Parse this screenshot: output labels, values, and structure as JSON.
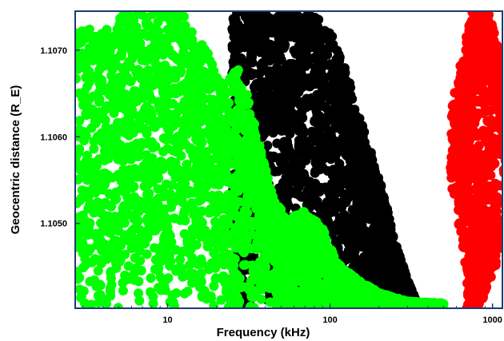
{
  "chart_data": {
    "type": "scatter",
    "title": "",
    "xlabel": "Frequency (kHz)",
    "ylabel": "Geocentric distance (R_E)",
    "x_scale": "log",
    "xlim": [
      2.7,
      1150
    ],
    "ylim": [
      1.10402,
      1.10745
    ],
    "x_ticks": [
      10,
      100,
      1000
    ],
    "x_tick_labels": [
      "10",
      "100",
      "1000"
    ],
    "y_ticks": [
      1.105,
      1.106,
      1.107
    ],
    "y_tick_labels": [
      "1.1050",
      "1.1060",
      "1.1070"
    ],
    "grid": false,
    "legend": "none",
    "series": [
      {
        "color": "#000000",
        "x_range": [
          25,
          340
        ],
        "envelope": [
          [
            25,
            1.10745
          ],
          [
            45,
            1.10745
          ],
          [
            60,
            1.10745
          ],
          [
            75,
            1.10745
          ],
          [
            95,
            1.1073
          ],
          [
            120,
            1.1069
          ],
          [
            150,
            1.1063
          ],
          [
            180,
            1.1058
          ],
          [
            210,
            1.1054
          ],
          [
            250,
            1.1048
          ],
          [
            300,
            1.10435
          ],
          [
            340,
            1.1041
          ]
        ]
      },
      {
        "color": "#00ff00",
        "x_range": [
          2.7,
          500
        ],
        "envelope": [
          [
            2.7,
            1.1073
          ],
          [
            4,
            1.1072
          ],
          [
            5,
            1.1074
          ],
          [
            8,
            1.10745
          ],
          [
            12,
            1.10745
          ],
          [
            16,
            1.1071
          ],
          [
            22,
            1.1067
          ],
          [
            28,
            1.1068
          ],
          [
            33,
            1.1063
          ],
          [
            38,
            1.1058
          ],
          [
            45,
            1.1053
          ],
          [
            55,
            1.10505
          ],
          [
            70,
            1.10515
          ],
          [
            90,
            1.10495
          ],
          [
            110,
            1.10455
          ],
          [
            150,
            1.10435
          ],
          [
            200,
            1.1042
          ],
          [
            300,
            1.1041
          ],
          [
            500,
            1.10408
          ]
        ]
      },
      {
        "color": "#ff0000",
        "x_range": [
          560,
          1050
        ],
        "envelope": [
          [
            560,
            1.10405
          ],
          [
            600,
            1.1052
          ],
          [
            650,
            1.1064
          ],
          [
            700,
            1.1072
          ],
          [
            760,
            1.10745
          ],
          [
            820,
            1.10745
          ],
          [
            870,
            1.10745
          ],
          [
            920,
            1.1072
          ],
          [
            980,
            1.1062
          ],
          [
            1020,
            1.1052
          ],
          [
            1040,
            1.1044
          ],
          [
            1020,
            1.10405
          ]
        ]
      }
    ]
  }
}
